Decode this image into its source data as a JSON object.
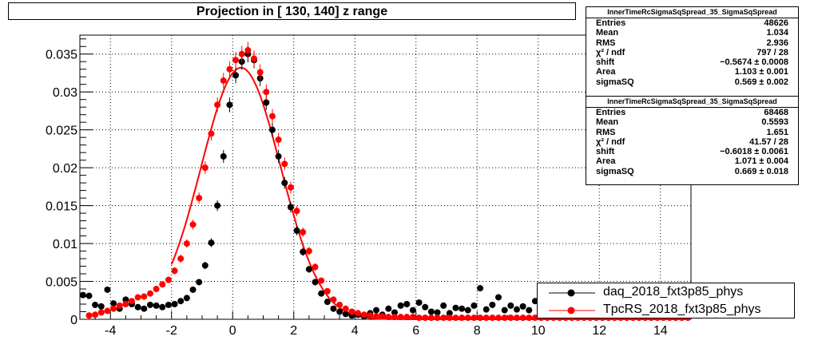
{
  "chart_data": {
    "type": "scatter",
    "title": "Projection in [ 130, 140] z range",
    "xlim": [
      -5,
      15
    ],
    "ylim": [
      0,
      0.0375
    ],
    "x_ticks": [
      -4,
      -2,
      0,
      2,
      4,
      6,
      8,
      10,
      12,
      14
    ],
    "y_ticks": [
      {
        "value": 0,
        "label": "0"
      },
      {
        "value": 0.005,
        "label": "0.005"
      },
      {
        "value": 0.01,
        "label": "0.01"
      },
      {
        "value": 0.015,
        "label": "0.015"
      },
      {
        "value": 0.02,
        "label": "0.02"
      },
      {
        "value": 0.025,
        "label": "0.025"
      },
      {
        "value": 0.03,
        "label": "0.03"
      },
      {
        "value": 0.035,
        "label": "0.035"
      }
    ],
    "grid": true,
    "legend_position": "bottom-right",
    "series": [
      {
        "name": "daq_2018_fxt3p85_phys",
        "color": "#000000",
        "marker": "circle",
        "x": [
          -4.9,
          -4.7,
          -4.5,
          -4.3,
          -4.1,
          -3.9,
          -3.7,
          -3.5,
          -3.3,
          -3.1,
          -2.9,
          -2.7,
          -2.5,
          -2.3,
          -2.1,
          -1.9,
          -1.7,
          -1.5,
          -1.3,
          -1.1,
          -0.9,
          -0.7,
          -0.5,
          -0.3,
          -0.1,
          0.1,
          0.3,
          0.5,
          0.7,
          0.9,
          1.1,
          1.3,
          1.5,
          1.7,
          1.9,
          2.1,
          2.3,
          2.5,
          2.7,
          2.9,
          3.1,
          3.3,
          3.5,
          3.7,
          3.9,
          4.1,
          4.3,
          4.5,
          4.7,
          4.9,
          5.1,
          5.3,
          5.5,
          5.7,
          5.9,
          6.1,
          6.3,
          6.5,
          6.7,
          6.9,
          7.1,
          7.3,
          7.5,
          7.7,
          7.9,
          8.1,
          8.3,
          8.5,
          8.7,
          8.9,
          9.1,
          9.3,
          9.5,
          9.7,
          9.9,
          10.1,
          10.3,
          10.5,
          10.7,
          10.9,
          11.1,
          11.3,
          11.5,
          11.7,
          11.9,
          12.1,
          12.3,
          12.5,
          12.7,
          12.9,
          13.1,
          13.3,
          13.5,
          13.7,
          13.9,
          14.1,
          14.3,
          14.5,
          14.7,
          14.9
        ],
        "y": [
          0.0032,
          0.0031,
          0.0019,
          0.0017,
          0.0039,
          0.0021,
          0.0014,
          0.0026,
          0.002,
          0.0016,
          0.0014,
          0.0019,
          0.0018,
          0.0016,
          0.0019,
          0.002,
          0.0024,
          0.0028,
          0.0039,
          0.0049,
          0.0071,
          0.0101,
          0.015,
          0.0215,
          0.0283,
          0.0322,
          0.034,
          0.035,
          0.0342,
          0.0318,
          0.0286,
          0.025,
          0.0215,
          0.018,
          0.0148,
          0.0117,
          0.0089,
          0.0066,
          0.0049,
          0.0034,
          0.0023,
          0.0014,
          0.001,
          0.0007,
          0.0005,
          0.0006,
          0.0004,
          0.0008,
          0.0012,
          0.0006,
          0.0014,
          0.0009,
          0.0018,
          0.002,
          0.0012,
          0.0022,
          0.0016,
          0.001,
          0.0009,
          0.0018,
          0.0008,
          0.0015,
          0.0014,
          0.0012,
          0.0018,
          0.0041,
          0.0013,
          0.0019,
          0.0029,
          0.0012,
          0.0018,
          0.0013,
          0.0017,
          0.0012,
          0.0024,
          0.0006,
          0.0012,
          0.002,
          0.0011,
          0.0015,
          0.0006,
          0.0012,
          0.0018,
          0.0009,
          0.0014,
          0.0008,
          0.0016,
          0.0011,
          0.0007,
          0.0013,
          0.001,
          0.0006,
          0.0012,
          0.0009,
          0.0005,
          0.0011,
          0.0008,
          0.0006,
          0.001,
          0.0007
        ]
      },
      {
        "name": "TpcRS_2018_fxt3p85_phys",
        "color": "#ff0000",
        "marker": "circle",
        "x": [
          -4.9,
          -4.7,
          -4.5,
          -4.3,
          -4.1,
          -3.9,
          -3.7,
          -3.5,
          -3.3,
          -3.1,
          -2.9,
          -2.7,
          -2.5,
          -2.3,
          -2.1,
          -1.9,
          -1.7,
          -1.5,
          -1.3,
          -1.1,
          -0.9,
          -0.7,
          -0.5,
          -0.3,
          -0.1,
          0.1,
          0.3,
          0.5,
          0.7,
          0.9,
          1.1,
          1.3,
          1.5,
          1.7,
          1.9,
          2.1,
          2.3,
          2.5,
          2.7,
          2.9,
          3.1,
          3.3,
          3.5,
          3.7,
          3.9,
          4.1,
          4.3,
          4.5,
          4.7,
          4.9,
          5.1,
          5.3,
          5.5,
          5.7,
          5.9,
          6.1,
          6.3,
          6.5,
          6.7,
          6.9,
          7.1,
          7.3,
          7.5,
          7.7,
          7.9,
          8.1,
          8.3,
          8.5,
          8.7,
          8.9,
          9.1,
          9.3,
          9.5,
          9.7,
          9.9,
          10.1,
          10.3,
          10.5,
          10.7,
          10.9,
          11.1,
          11.3,
          11.5,
          11.7,
          11.9,
          12.1,
          12.3,
          12.5,
          12.7,
          12.9,
          13.1,
          13.3,
          13.5,
          13.7,
          13.9,
          14.1,
          14.3,
          14.5,
          14.7,
          14.9
        ],
        "y": [
          0.0,
          0.0005,
          0.0006,
          0.0009,
          0.0011,
          0.0014,
          0.0018,
          0.002,
          0.0024,
          0.0029,
          0.003,
          0.0034,
          0.004,
          0.0046,
          0.0052,
          0.0064,
          0.008,
          0.01,
          0.0125,
          0.016,
          0.02,
          0.0245,
          0.0283,
          0.0315,
          0.033,
          0.0342,
          0.035,
          0.0355,
          0.0344,
          0.0326,
          0.03,
          0.0268,
          0.0237,
          0.0205,
          0.0174,
          0.0143,
          0.0115,
          0.009,
          0.0069,
          0.0051,
          0.0037,
          0.0026,
          0.0019,
          0.0014,
          0.001,
          0.0008,
          0.0006,
          0.0005,
          0.0004,
          0.0004,
          0.0003,
          0.0003,
          0.0003,
          0.0003,
          0.0003,
          0.0002,
          0.0002,
          0.0002,
          0.0002,
          0.0002,
          0.0002,
          0.0002,
          0.0002,
          0.0002,
          0.0002,
          0.0002,
          0.0002,
          0.0002,
          0.0002,
          0.0002,
          0.0002,
          0.0002,
          0.0002,
          0.0002,
          0.0002,
          0.0002,
          0.0002,
          0.0002,
          0.0002,
          0.0002,
          0.0002,
          0.0002,
          0.0002,
          0.0002,
          0.0002,
          0.0002,
          0.0002,
          0.0002,
          0.0002,
          0.0002,
          0.0002,
          0.0002,
          0.0002,
          0.0002,
          0.0002,
          0.0002,
          0.0002,
          0.0002,
          0.0002,
          0.0002
        ]
      }
    ],
    "fit": {
      "color": "#ff0000",
      "mean": 0.569,
      "amplitude": 0.0332,
      "sigma": 1.3
    }
  },
  "stats": [
    {
      "title": "InnerTimeRcSigmaSqSpread_35_SigmaSqSpread",
      "rows": [
        {
          "label": "Entries",
          "value": "48626"
        },
        {
          "label": "Mean",
          "value": "1.034"
        },
        {
          "label": "RMS",
          "value": "2.936"
        },
        {
          "label": "χ² / ndf",
          "value": "797 / 28"
        },
        {
          "label": "shift",
          "value": "−0.5674 ± 0.0008"
        },
        {
          "label": "Area",
          "value": "1.103 ± 0.001"
        },
        {
          "label": "sigmaSQ",
          "value": "0.569 ± 0.002"
        }
      ]
    },
    {
      "title": "InnerTimeRcSigmaSqSpread_35_SigmaSqSpread",
      "rows": [
        {
          "label": "Entries",
          "value": "68468"
        },
        {
          "label": "Mean",
          "value": "0.5593"
        },
        {
          "label": "RMS",
          "value": "1.651"
        },
        {
          "label": "χ² / ndf",
          "value": "41.57 / 28"
        },
        {
          "label": "shift",
          "value": "−0.6018 ± 0.0061"
        },
        {
          "label": "Area",
          "value": "1.071 ± 0.004"
        },
        {
          "label": "sigmaSQ",
          "value": "0.669 ± 0.018"
        }
      ]
    }
  ],
  "legend": [
    {
      "label": "daq_2018_fxt3p85_phys",
      "color": "#000000"
    },
    {
      "label": "TpcRS_2018_fxt3p85_phys",
      "color": "#ff0000"
    }
  ]
}
